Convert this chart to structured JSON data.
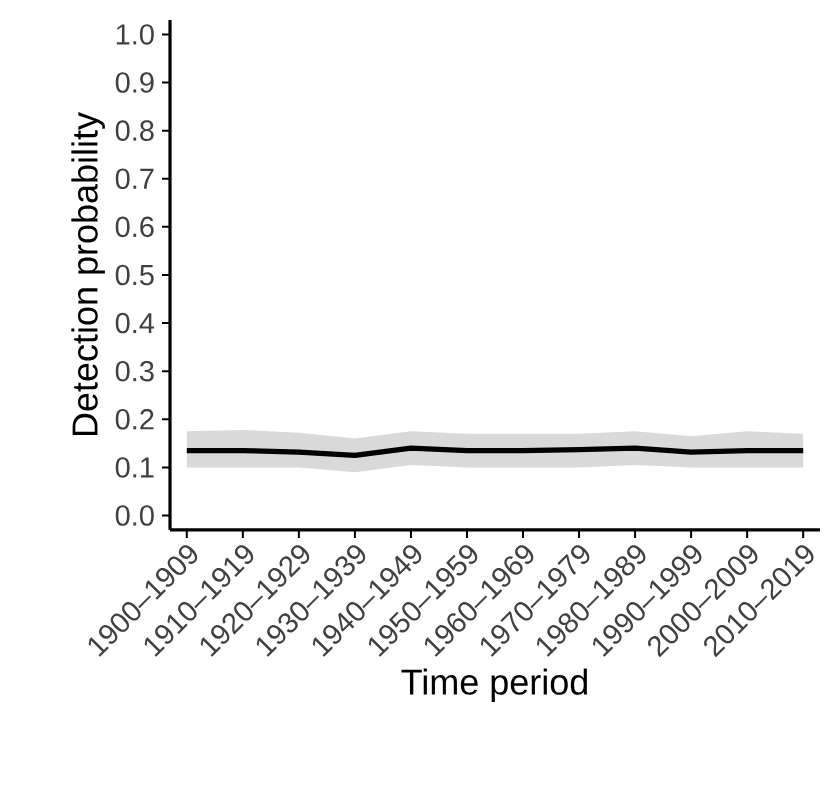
{
  "chart_data": {
    "type": "line",
    "xlabel": "Time period",
    "ylabel": "Detection probability",
    "categories": [
      "1900–1909",
      "1910–1919",
      "1920–1929",
      "1930–1939",
      "1940–1949",
      "1950–1959",
      "1960–1969",
      "1970–1979",
      "1980–1989",
      "1990–1999",
      "2000–2009",
      "2010–2019"
    ],
    "series": [
      {
        "color": "#000000",
        "values": [
          0.135,
          0.135,
          0.132,
          0.125,
          0.14,
          0.135,
          0.135,
          0.137,
          0.14,
          0.132,
          0.135,
          0.135
        ],
        "lower": [
          0.1,
          0.1,
          0.1,
          0.09,
          0.105,
          0.1,
          0.1,
          0.1,
          0.105,
          0.1,
          0.1,
          0.1
        ],
        "upper": [
          0.175,
          0.178,
          0.172,
          0.16,
          0.175,
          0.17,
          0.17,
          0.17,
          0.175,
          0.165,
          0.175,
          0.17
        ]
      }
    ],
    "ylim": [
      -0.03,
      1.03
    ],
    "yticks": [
      {
        "value": 0,
        "label": "0.0"
      },
      0.1,
      0.2,
      0.3,
      0.4,
      0.5,
      0.6,
      0.7,
      0.8,
      0.9,
      {
        "value": 1,
        "label": "1.0"
      }
    ],
    "grid": false,
    "marker": "none",
    "line_style": "solid"
  }
}
